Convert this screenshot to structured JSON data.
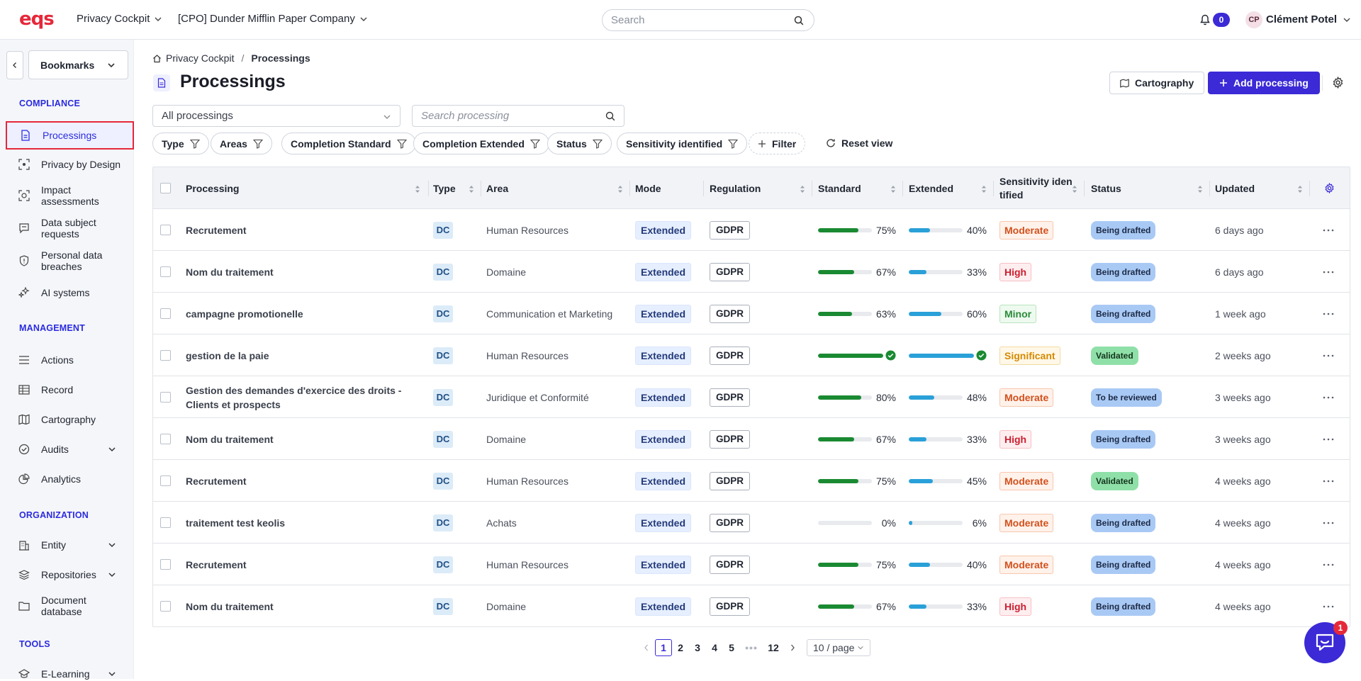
{
  "header": {
    "logo": "eqs",
    "workspace": "Privacy Cockpit",
    "company": "[CPO] Dunder Mifflin Paper Company",
    "search_placeholder": "Search",
    "notifications": "0",
    "user_initials": "CP",
    "user_name": "Clément Potel"
  },
  "sidebar": {
    "bookmarks": "Bookmarks",
    "sections": {
      "compliance": "COMPLIANCE",
      "management": "MANAGEMENT",
      "organization": "ORGANIZATION",
      "tools": "TOOLS"
    },
    "items": {
      "processings": "Processings",
      "privacy_by_design": "Privacy by Design",
      "impact_assessments": "Impact assessments",
      "data_subject_requests": "Data subject requests",
      "personal_data_breaches": "Personal data breaches",
      "ai_systems": "AI systems",
      "actions": "Actions",
      "record": "Record",
      "cartography": "Cartography",
      "audits": "Audits",
      "analytics": "Analytics",
      "entity": "Entity",
      "repositories": "Repositories",
      "document_database": "Document database",
      "elearning": "E-Learning"
    }
  },
  "breadcrumb": {
    "root": "Privacy Cockpit",
    "separator": "/",
    "current": "Processings"
  },
  "page": {
    "title": "Processings",
    "cartography_btn": "Cartography",
    "add_btn": "Add processing",
    "filter_select": "All processings",
    "search_placeholder": "Search processing"
  },
  "filters": {
    "type": "Type",
    "areas": "Areas",
    "completion_standard": "Completion Standard",
    "completion_extended": "Completion Extended",
    "status": "Status",
    "sensitivity": "Sensitivity identified",
    "add_filter": "Filter",
    "reset": "Reset view"
  },
  "table": {
    "headers": {
      "processing": "Processing",
      "type": "Type",
      "area": "Area",
      "mode": "Mode",
      "regulation": "Regulation",
      "standard": "Standard",
      "extended": "Extended",
      "sensitivity_1": "Sensitivity iden",
      "sensitivity_2": "tified",
      "status": "Status",
      "updated": "Updated"
    },
    "rows": [
      {
        "name": "Recrutement",
        "type": "DC",
        "area": "Human Resources",
        "mode": "Extended",
        "regulation": "GDPR",
        "standard": 75,
        "standard_label": "75%",
        "extended": 40,
        "extended_label": "40%",
        "sensitivity": "Moderate",
        "sens_class": "mod",
        "status": "Being drafted",
        "st_class": "draft",
        "updated": "6 days ago"
      },
      {
        "name": "Nom du traitement",
        "type": "DC",
        "area": "Domaine",
        "mode": "Extended",
        "regulation": "GDPR",
        "standard": 67,
        "standard_label": "67%",
        "extended": 33,
        "extended_label": "33%",
        "sensitivity": "High",
        "sens_class": "high",
        "status": "Being drafted",
        "st_class": "draft",
        "updated": "6 days ago"
      },
      {
        "name": "campagne promotionelle",
        "type": "DC",
        "area": "Communication et Marketing",
        "mode": "Extended",
        "regulation": "GDPR",
        "standard": 63,
        "standard_label": "63%",
        "extended": 60,
        "extended_label": "60%",
        "sensitivity": "Minor",
        "sens_class": "min",
        "status": "Being drafted",
        "st_class": "draft",
        "updated": "1 week ago"
      },
      {
        "name": "gestion de la paie",
        "type": "DC",
        "area": "Human Resources",
        "mode": "Extended",
        "regulation": "GDPR",
        "standard": 100,
        "standard_label": "",
        "extended": 100,
        "extended_label": "",
        "sensitivity": "Significant",
        "sens_class": "sig",
        "status": "Validated",
        "st_class": "valid",
        "updated": "2 weeks ago"
      },
      {
        "name": "Gestion des demandes d'exercice des droits - Clients et prospects",
        "type": "DC",
        "area": "Juridique et Conformité",
        "mode": "Extended",
        "regulation": "GDPR",
        "standard": 80,
        "standard_label": "80%",
        "extended": 48,
        "extended_label": "48%",
        "sensitivity": "Moderate",
        "sens_class": "mod",
        "status": "To be reviewed",
        "st_class": "review",
        "updated": "3 weeks ago"
      },
      {
        "name": "Nom du traitement",
        "type": "DC",
        "area": "Domaine",
        "mode": "Extended",
        "regulation": "GDPR",
        "standard": 67,
        "standard_label": "67%",
        "extended": 33,
        "extended_label": "33%",
        "sensitivity": "High",
        "sens_class": "high",
        "status": "Being drafted",
        "st_class": "draft",
        "updated": "3 weeks ago"
      },
      {
        "name": "Recrutement",
        "type": "DC",
        "area": "Human Resources",
        "mode": "Extended",
        "regulation": "GDPR",
        "standard": 75,
        "standard_label": "75%",
        "extended": 45,
        "extended_label": "45%",
        "sensitivity": "Moderate",
        "sens_class": "mod",
        "status": "Validated",
        "st_class": "valid",
        "updated": "4 weeks ago"
      },
      {
        "name": "traitement test keolis",
        "type": "DC",
        "area": "Achats",
        "mode": "Extended",
        "regulation": "GDPR",
        "standard": 0,
        "standard_label": "0%",
        "extended": 6,
        "extended_label": "6%",
        "sensitivity": "Moderate",
        "sens_class": "mod",
        "status": "Being drafted",
        "st_class": "draft",
        "updated": "4 weeks ago"
      },
      {
        "name": "Recrutement",
        "type": "DC",
        "area": "Human Resources",
        "mode": "Extended",
        "regulation": "GDPR",
        "standard": 75,
        "standard_label": "75%",
        "extended": 40,
        "extended_label": "40%",
        "sensitivity": "Moderate",
        "sens_class": "mod",
        "status": "Being drafted",
        "st_class": "draft",
        "updated": "4 weeks ago"
      },
      {
        "name": "Nom du traitement",
        "type": "DC",
        "area": "Domaine",
        "mode": "Extended",
        "regulation": "GDPR",
        "standard": 67,
        "standard_label": "67%",
        "extended": 33,
        "extended_label": "33%",
        "sensitivity": "High",
        "sens_class": "high",
        "status": "Being drafted",
        "st_class": "draft",
        "updated": "4 weeks ago"
      }
    ]
  },
  "pagination": {
    "pages": [
      "1",
      "2",
      "3",
      "4",
      "5"
    ],
    "ellipsis": "•••",
    "last": "12",
    "current": "1",
    "page_size": "10 / page"
  },
  "help_badge": "1",
  "colors": {
    "brand": "#e5283a",
    "primary": "#3b2ad6",
    "standard_bar": "#1a8a32",
    "extended_bar": "#2aa0d8"
  }
}
